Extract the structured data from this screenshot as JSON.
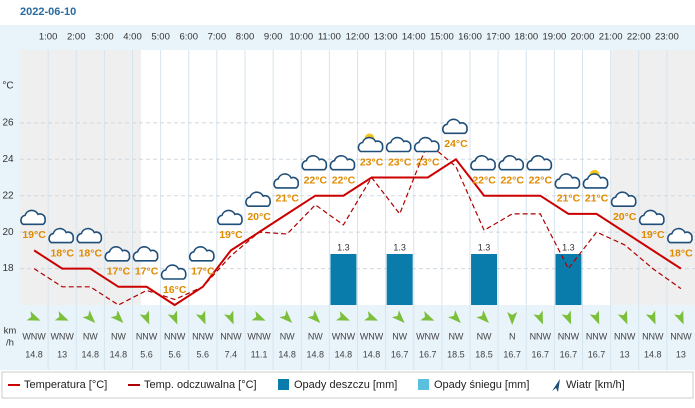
{
  "chart_data": {
    "type": "line",
    "title": "2022-06-10",
    "y_label": "°C",
    "wind_unit_lines": [
      "km",
      "/h"
    ],
    "hour_labels": [
      "1:00",
      "2:00",
      "3:00",
      "4:00",
      "5:00",
      "6:00",
      "7:00",
      "8:00",
      "9:00",
      "10:00",
      "11:00",
      "12:00",
      "13:00",
      "14:00",
      "15:00",
      "16:00",
      "17:00",
      "18:00",
      "19:00",
      "20:00",
      "21:00",
      "22:00",
      "23:00"
    ],
    "ylim": [
      16,
      30
    ],
    "yticks": [
      18,
      20,
      22,
      24,
      26
    ],
    "y2lim": [
      0,
      6.5
    ],
    "grid": true,
    "series": [
      {
        "name": "Temperatura [°C]",
        "color": "#cc0000",
        "values": [
          19,
          18,
          18,
          17,
          17,
          16,
          17,
          19,
          20,
          21,
          22,
          22,
          23,
          23,
          23,
          24,
          22,
          22,
          22,
          21,
          21,
          20,
          19,
          18
        ],
        "value_labels": [
          "19°C",
          "18°C",
          "18°C",
          "17°C",
          "17°C",
          "16°C",
          "17°C",
          "19°C",
          "20°C",
          "21°C",
          "22°C",
          "22°C",
          "23°C",
          "23°C",
          "23°C",
          "24°C",
          "22°C",
          "22°C",
          "22°C",
          "21°C",
          "21°C",
          "20°C",
          "19°C",
          "18°C"
        ]
      },
      {
        "name": "Temp. odczuwalna [°C]",
        "color": "#b00000",
        "values": [
          18,
          17,
          17,
          16,
          16.8,
          16.3,
          17,
          18.7,
          20,
          19.9,
          21.5,
          20.4,
          23,
          21,
          24.9,
          23.6,
          20.1,
          21,
          21,
          18,
          20,
          19.3,
          18,
          16.9
        ]
      },
      {
        "name": "Opady deszczu [mm]",
        "color": "#0a7cac",
        "axis": "y2",
        "values": [
          null,
          null,
          null,
          null,
          null,
          null,
          null,
          null,
          null,
          null,
          null,
          1.3,
          null,
          1.3,
          null,
          null,
          1.3,
          null,
          null,
          1.3,
          null,
          null,
          null,
          null
        ]
      },
      {
        "name": "Opady śniegu [mm]",
        "color": "#5bc0de",
        "axis": "y2",
        "values": [
          null,
          null,
          null,
          null,
          null,
          null,
          null,
          null,
          null,
          null,
          null,
          null,
          null,
          null,
          null,
          null,
          null,
          null,
          null,
          null,
          null,
          null,
          null,
          null
        ]
      }
    ],
    "wind": {
      "name": "Wiatr [km/h]",
      "directions": [
        "WNW",
        "WNW",
        "NW",
        "NW",
        "NNW",
        "NNW",
        "NNW",
        "NNW",
        "WNW",
        "NW",
        "NW",
        "WNW",
        "WNW",
        "NW",
        "WNW",
        "NW",
        "NW",
        "N",
        "NNW",
        "NNW",
        "NNW",
        "NNW",
        "NNW",
        "NNW"
      ],
      "speeds": [
        14.8,
        13,
        14.8,
        14.8,
        5.6,
        5.6,
        5.6,
        7.4,
        11.1,
        14.8,
        14.8,
        14.8,
        14.8,
        16.7,
        16.7,
        18.5,
        18.5,
        16.7,
        16.7,
        16.7,
        16.7,
        13,
        14.8,
        13
      ]
    }
  }
}
